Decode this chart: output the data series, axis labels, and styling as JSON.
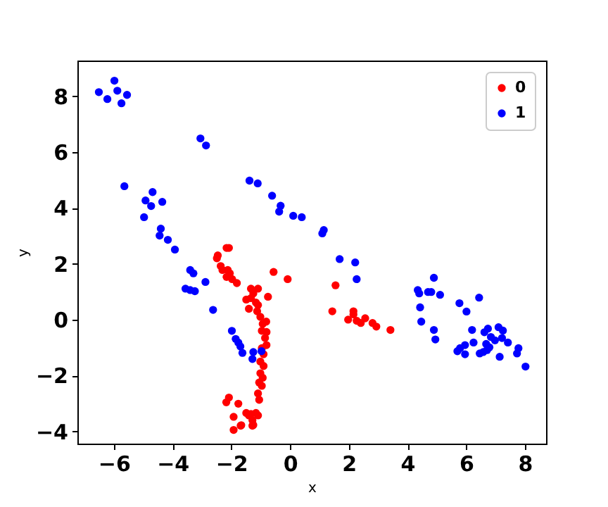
{
  "chart_data": {
    "type": "scatter",
    "xlabel": "x",
    "ylabel": "y",
    "xlim": [
      -7.24,
      8.72
    ],
    "ylim": [
      -4.44,
      9.28
    ],
    "xticks": [
      -6,
      -4,
      -2,
      0,
      2,
      4,
      6,
      8
    ],
    "yticks": [
      -4,
      -2,
      0,
      2,
      4,
      6,
      8
    ],
    "grid": false,
    "legend": "top right",
    "marker": "circle",
    "series": [
      {
        "name": "0",
        "color": "#ff0000",
        "x": [
          -2.16,
          -2.08,
          -2.46,
          -2.49,
          -2.36,
          -2.3,
          -2.12,
          -2.05,
          -2.16,
          -1.97,
          -1.81,
          -0.56,
          -0.08,
          -1.33,
          -1.09,
          -1.25,
          -1.49,
          -1.33,
          -1.16,
          -1.09,
          -1.4,
          -0.75,
          -1.12,
          -1.01,
          -0.93,
          -0.81,
          -0.96,
          -0.8,
          -0.85,
          -0.8,
          -0.96,
          -0.9,
          -1.01,
          -0.9,
          -1.01,
          -0.93,
          -1.05,
          -0.96,
          -1.09,
          -1.05,
          -2.08,
          -2.17,
          -1.76,
          -1.49,
          -1.33,
          -1.16,
          -1.09,
          -1.92,
          -1.28,
          -1.66,
          -1.25,
          -1.92,
          -1.68,
          -1.28,
          -1.4,
          1.55,
          1.44,
          1.98,
          2.16,
          2.16,
          2.27,
          2.41,
          2.56,
          2.81,
          2.94,
          3.42
        ],
        "values": [
          2.57,
          2.57,
          2.3,
          2.2,
          1.92,
          1.78,
          1.78,
          1.66,
          1.53,
          1.45,
          1.31,
          1.71,
          1.45,
          1.11,
          1.11,
          0.94,
          0.72,
          0.77,
          0.61,
          0.52,
          0.39,
          0.82,
          0.3,
          0.1,
          -0.15,
          -0.07,
          -0.4,
          -0.44,
          -0.66,
          -0.91,
          -1.02,
          -1.24,
          -1.5,
          -1.66,
          -1.92,
          -2.08,
          -2.25,
          -2.37,
          -2.64,
          -2.87,
          -2.79,
          -2.96,
          -3.01,
          -3.34,
          -3.38,
          -3.34,
          -3.43,
          -3.48,
          -3.6,
          -3.78,
          -3.77,
          -3.95,
          -3.8,
          -3.8,
          -3.43,
          1.23,
          0.3,
          0.0,
          0.3,
          0.19,
          -0.04,
          -0.12,
          0.05,
          -0.12,
          -0.25,
          -0.37
        ]
      },
      {
        "name": "1",
        "color": "#0000ff",
        "x": [
          -5.98,
          -6.51,
          -5.88,
          -6.22,
          -5.55,
          -5.74,
          -3.05,
          -2.86,
          -5.64,
          -4.68,
          -4.92,
          -4.73,
          -4.35,
          -4.97,
          -4.4,
          -4.44,
          -4.16,
          -3.92,
          -1.38,
          -1.1,
          -0.61,
          -0.32,
          -0.37,
          0.11,
          0.4,
          1.15,
          1.1,
          1.69,
          -3.4,
          -3.29,
          -2.88,
          -3.56,
          -3.24,
          -3.4,
          -2.62,
          -1.98,
          -1.85,
          -1.76,
          -1.69,
          -1.62,
          -1.25,
          -1.28,
          -0.97,
          2.22,
          2.27,
          4.9,
          4.35,
          4.4,
          4.7,
          4.81,
          5.11,
          4.43,
          4.47,
          5.77,
          6.01,
          6.44,
          4.9,
          4.95,
          6.2,
          6.25,
          5.7,
          5.79,
          5.96,
          5.96,
          6.46,
          6.58,
          6.71,
          6.62,
          6.74,
          6.84,
          6.68,
          6.98,
          7.1,
          7.25,
          7.22,
          7.42,
          6.79,
          7.14,
          7.73,
          7.78,
          8.02
        ],
        "values": [
          8.56,
          8.15,
          8.2,
          7.9,
          8.05,
          7.75,
          6.49,
          6.24,
          4.78,
          4.57,
          4.27,
          4.07,
          4.22,
          3.67,
          3.26,
          3.01,
          2.86,
          2.51,
          4.98,
          4.88,
          4.44,
          4.08,
          3.87,
          3.72,
          3.67,
          3.21,
          3.09,
          2.17,
          1.78,
          1.66,
          1.35,
          1.11,
          1.02,
          1.06,
          0.35,
          -0.4,
          -0.69,
          -0.82,
          -0.96,
          -1.19,
          -1.16,
          -1.41,
          -1.13,
          2.05,
          1.45,
          1.5,
          1.06,
          0.94,
          0.99,
          0.99,
          0.89,
          0.44,
          -0.07,
          0.59,
          0.29,
          0.79,
          -0.37,
          -0.71,
          -0.37,
          -0.82,
          -1.13,
          -1.02,
          -1.24,
          -0.91,
          -1.21,
          -1.16,
          -1.09,
          -0.45,
          -0.32,
          -0.62,
          -0.87,
          -0.74,
          -0.27,
          -0.39,
          -0.66,
          -0.82,
          -0.99,
          -1.33,
          -1.21,
          -1.02,
          -1.68
        ]
      }
    ]
  }
}
